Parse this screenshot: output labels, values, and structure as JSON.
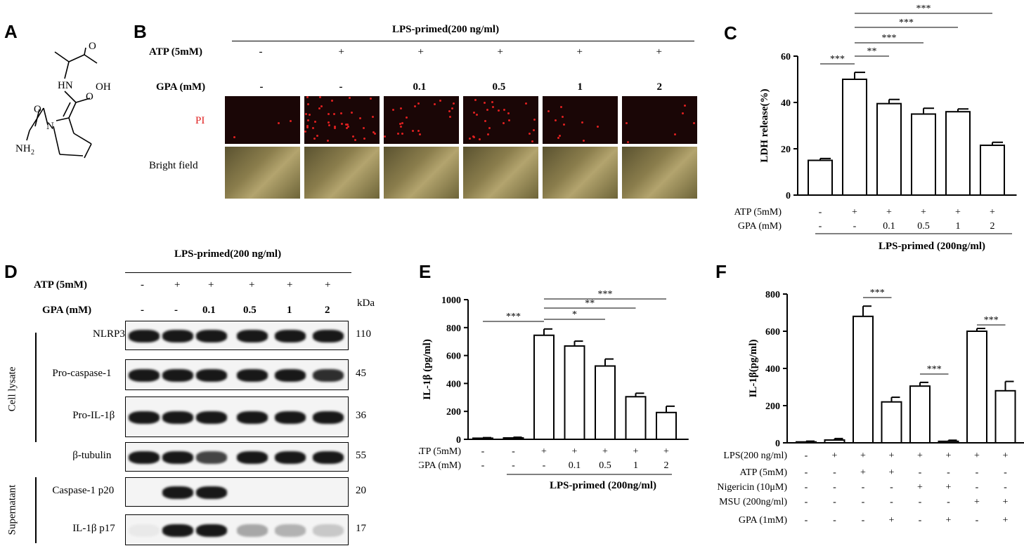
{
  "panels": {
    "A": "A",
    "B": "B",
    "C": "C",
    "D": "D",
    "E": "E",
    "F": "F"
  },
  "panelA": {
    "atoms": {
      "nh": "HN",
      "oh": "OH",
      "o1": "O",
      "o2": "O",
      "n": "N",
      "nh2": "NH",
      "nh2_sub": "2"
    }
  },
  "panelB": {
    "header": "LPS-primed(200 ng/ml)",
    "row_labels": {
      "atp": "ATP (5mM)",
      "gpa": "GPA (mM)",
      "pi": "PI",
      "bf": "Bright field"
    },
    "atp": [
      "-",
      "+",
      "+",
      "+",
      "+",
      "+"
    ],
    "gpa": [
      "-",
      "-",
      "0.1",
      "0.5",
      "1",
      "2"
    ],
    "pi_color": "#e02020",
    "pi_dots": [
      3,
      40,
      20,
      24,
      10,
      6
    ]
  },
  "chart_data": [
    {
      "panel": "C",
      "type": "bar",
      "ylabel": "LDH release(%)",
      "ylim": [
        0,
        60
      ],
      "yticks": [
        "0",
        "20",
        "40",
        "60"
      ],
      "values": [
        15,
        50,
        39.5,
        35,
        36,
        21.5
      ],
      "errors": [
        0.8,
        3,
        1.8,
        2.5,
        1.2,
        1.3
      ],
      "row_labels": [
        "ATP (5mM)",
        "GPA (mM)"
      ],
      "rows": [
        [
          "-",
          "+",
          "+",
          "+",
          "+",
          "+"
        ],
        [
          "-",
          "-",
          "0.1",
          "0.5",
          "1",
          "2"
        ]
      ],
      "group_label": "LPS-primed (200ng/ml)",
      "sig": [
        {
          "from": 0,
          "to": 1,
          "label": "***"
        },
        {
          "from": 1,
          "to": 2,
          "label": "**"
        },
        {
          "from": 1,
          "to": 3,
          "label": "***"
        },
        {
          "from": 1,
          "to": 4,
          "label": "***"
        },
        {
          "from": 1,
          "to": 5,
          "label": "***"
        }
      ]
    },
    {
      "panel": "E",
      "type": "bar",
      "ylabel": "IL-1β (pg/ml)",
      "ylim": [
        0,
        1000
      ],
      "yticks": [
        "0",
        "200",
        "400",
        "600",
        "800",
        "1000"
      ],
      "values": [
        8,
        10,
        745,
        668,
        525,
        305,
        192
      ],
      "errors": [
        4,
        5,
        45,
        35,
        50,
        25,
        45
      ],
      "row_labels": [
        "ATP (5mM)",
        "GPA (mM)"
      ],
      "rows": [
        [
          "-",
          "-",
          "+",
          "+",
          "+",
          "+",
          "+"
        ],
        [
          "-",
          "-",
          "-",
          "0.1",
          "0.5",
          "1",
          "2"
        ]
      ],
      "group_label": "LPS-primed (200ng/ml)",
      "sig": [
        {
          "from": 0,
          "to": 2,
          "label": "***"
        },
        {
          "from": 2,
          "to": 4,
          "label": "*"
        },
        {
          "from": 2,
          "to": 5,
          "label": "**"
        },
        {
          "from": 2,
          "to": 6,
          "label": "***"
        }
      ]
    },
    {
      "panel": "F",
      "type": "bar",
      "ylabel": "IL-1β(pg/ml)",
      "ylim": [
        0,
        800
      ],
      "yticks": [
        "0",
        "200",
        "400",
        "600",
        "800"
      ],
      "values": [
        5,
        15,
        680,
        220,
        305,
        8,
        600,
        280
      ],
      "errors": [
        4,
        8,
        55,
        25,
        20,
        6,
        15,
        50
      ],
      "row_labels": [
        "LPS(200 ng/ml)",
        "ATP (5mM)",
        "Nigericin (10μM)",
        "MSU (200ng/ml)",
        "GPA (1mM)"
      ],
      "rows": [
        [
          "-",
          "+",
          "+",
          "+",
          "+",
          "+",
          "+",
          "+"
        ],
        [
          "-",
          "-",
          "+",
          "+",
          "-",
          "-",
          "-",
          "-"
        ],
        [
          "-",
          "-",
          "-",
          "-",
          "+",
          "+",
          "-",
          "-"
        ],
        [
          "-",
          "-",
          "-",
          "-",
          "-",
          "-",
          "+",
          "+"
        ],
        [
          "-",
          "-",
          "-",
          "+",
          "-",
          "+",
          "-",
          "+"
        ]
      ],
      "sig": [
        {
          "from": 2,
          "to": 3,
          "label": "***"
        },
        {
          "from": 4,
          "to": 5,
          "label": "***"
        },
        {
          "from": 6,
          "to": 7,
          "label": "***"
        }
      ]
    }
  ],
  "panelD": {
    "header": "LPS-primed(200 ng/ml)",
    "row_labels": {
      "atp": "ATP (5mM)",
      "gpa": "GPA (mM)"
    },
    "atp": [
      "-",
      "+",
      "+",
      "+",
      "+",
      "+"
    ],
    "gpa": [
      "-",
      "-",
      "0.1",
      "0.5",
      "1",
      "2"
    ],
    "kda": "kDa",
    "side_lysate": "Cell  lysate",
    "side_sup": "Supernatant",
    "blots": [
      {
        "name": "NLRP3",
        "kda": "110",
        "bands": [
          1,
          1,
          1,
          1,
          1,
          1
        ]
      },
      {
        "name": "Pro-caspase-1",
        "kda": "45",
        "bands": [
          1,
          1,
          1,
          1,
          1,
          0.9
        ]
      },
      {
        "name": "Pro-IL-1β",
        "kda": "36",
        "bands": [
          1,
          1,
          1,
          1,
          1,
          1
        ]
      },
      {
        "name": "β-tubulin",
        "kda": "55",
        "bands": [
          1,
          1,
          0.8,
          1,
          1,
          1
        ]
      },
      {
        "name": "Caspase-1 p20",
        "kda": "20",
        "bands": [
          0,
          1,
          1,
          0,
          0,
          0
        ]
      },
      {
        "name": "IL-1β p17",
        "kda": "17",
        "bands": [
          0.05,
          1,
          1,
          0.35,
          0.3,
          0.2
        ]
      }
    ]
  }
}
